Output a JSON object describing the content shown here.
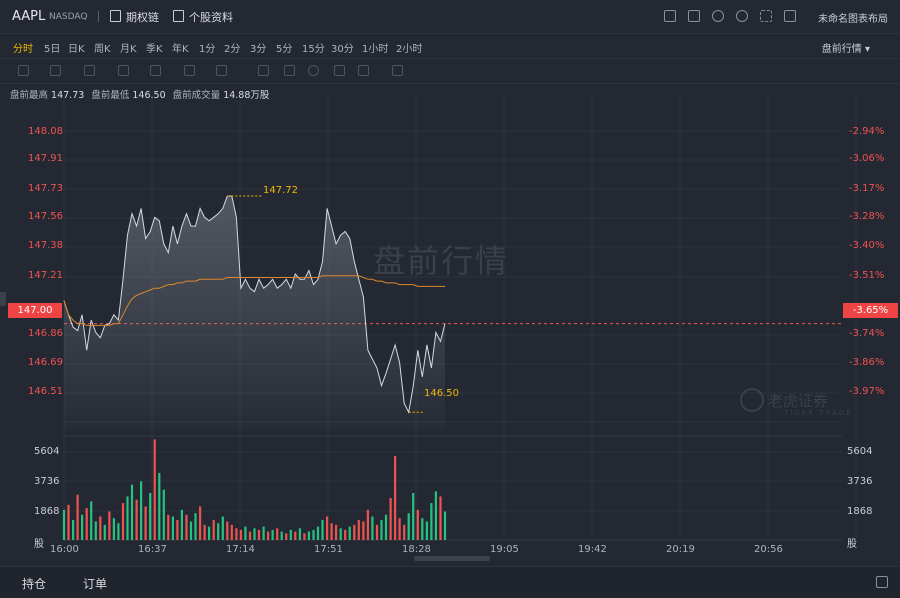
{
  "header": {
    "symbol": "AAPL",
    "exchange": "NASDAQ",
    "links": [
      {
        "label": "期权链",
        "icon": "chain-icon"
      },
      {
        "label": "个股资料",
        "icon": "document-icon"
      }
    ],
    "tool_icons": [
      "chart-settings-icon",
      "draw-icon",
      "refresh-icon",
      "gear-icon",
      "fullscreen-icon",
      "grid-icon"
    ],
    "layout_name": "未命名图表布局"
  },
  "timeframes": [
    "分时",
    "5日",
    "日K",
    "周K",
    "月K",
    "季K",
    "年K",
    "1分",
    "2分",
    "3分",
    "5分",
    "15分",
    "30分",
    "1小时",
    "2小时"
  ],
  "active_timeframe": 0,
  "session_selector": "盘前行情 ▾",
  "stats": [
    {
      "label": "盘前最高",
      "value": "147.73"
    },
    {
      "label": "盘前最低",
      "value": "146.50"
    },
    {
      "label": "盘前成交量",
      "value": "14.88万股"
    }
  ],
  "price_axis": [
    "148.08",
    "147.91",
    "147.73",
    "147.56",
    "147.38",
    "147.21",
    "147.00",
    "146.86",
    "146.69",
    "146.51"
  ],
  "pct_axis": [
    "-2.94%",
    "-3.06%",
    "-3.17%",
    "-3.28%",
    "-3.40%",
    "-3.51%",
    "-3.65%",
    "-3.74%",
    "-3.86%",
    "-3.97%"
  ],
  "current_price": "147.00",
  "current_pct": "-3.65%",
  "high_callout": "147.72",
  "low_callout": "146.50",
  "watermark": "盘前行情",
  "brand": {
    "cn": "老虎证券",
    "en": "TIGER TRADE"
  },
  "volume_axis": [
    "5604",
    "3736",
    "1868",
    "股"
  ],
  "x_axis": [
    "16:00",
    "16:37",
    "17:14",
    "17:51",
    "18:28",
    "19:05",
    "19:42",
    "20:19",
    "20:56"
  ],
  "bottom_tabs": [
    "持仓",
    "订单"
  ],
  "colors": {
    "up": "#26c281",
    "down": "#ef5350",
    "avg": "#d9882b",
    "price": "#d6dae0",
    "accent": "#f2b705"
  },
  "chart_data": {
    "type": "line",
    "x_range": [
      "16:00",
      "21:30"
    ],
    "price_series": [
      147.13,
      147.05,
      146.98,
      146.96,
      147.05,
      146.85,
      147.02,
      146.95,
      146.92,
      146.99,
      147.0,
      147.05,
      147.02,
      147.25,
      147.5,
      147.62,
      147.55,
      147.65,
      147.48,
      147.52,
      147.6,
      147.58,
      147.45,
      147.4,
      147.55,
      147.45,
      147.55,
      147.62,
      147.55,
      147.55,
      147.65,
      147.6,
      147.58,
      147.6,
      147.62,
      147.65,
      147.72,
      147.72,
      147.6,
      147.2,
      147.25,
      147.2,
      147.18,
      147.25,
      147.2,
      147.22,
      147.25,
      147.2,
      147.22,
      147.25,
      147.2,
      147.28,
      147.25,
      147.25,
      147.3,
      147.22,
      147.25,
      147.35,
      147.65,
      147.55,
      147.45,
      147.5,
      147.52,
      147.48,
      147.35,
      147.25,
      147.15,
      146.85,
      146.8,
      146.75,
      146.65,
      146.72,
      146.8,
      146.88,
      146.78,
      146.55,
      146.5,
      146.65,
      146.85,
      146.7,
      146.88,
      146.75,
      146.95,
      146.9,
      147.0
    ],
    "avg_series": [
      147.13,
      147.05,
      147.02,
      147.0,
      147.0,
      146.99,
      146.99,
      146.99,
      146.99,
      146.99,
      146.99,
      147.0,
      147.0,
      147.05,
      147.1,
      147.14,
      147.16,
      147.17,
      147.18,
      147.19,
      147.2,
      147.2,
      147.21,
      147.22,
      147.22,
      147.23,
      147.23,
      147.24,
      147.24,
      147.24,
      147.25,
      147.25,
      147.25,
      147.25,
      147.25,
      147.25,
      147.26,
      147.26,
      147.26,
      147.26,
      147.26,
      147.26,
      147.26,
      147.26,
      147.26,
      147.26,
      147.26,
      147.26,
      147.26,
      147.26,
      147.26,
      147.26,
      147.26,
      147.26,
      147.26,
      147.26,
      147.26,
      147.27,
      147.27,
      147.27,
      147.27,
      147.27,
      147.27,
      147.27,
      147.27,
      147.27,
      147.26,
      147.25,
      147.25,
      147.24,
      147.24,
      147.23,
      147.23,
      147.23,
      147.22,
      147.22,
      147.22,
      147.22,
      147.21,
      147.21,
      147.21,
      147.21,
      147.21,
      147.21,
      147.21
    ],
    "volume_values": [
      1800,
      2100,
      1200,
      2700,
      1500,
      1900,
      2300,
      1100,
      1400,
      900,
      1700,
      1300,
      1000,
      2200,
      2600,
      3300,
      2400,
      3500,
      2000,
      2800,
      6000,
      4000,
      3000,
      1500,
      1400,
      1200,
      1800,
      1500,
      1100,
      1600,
      2000,
      900,
      800,
      1200,
      1000,
      1400,
      1100,
      900,
      700,
      600,
      800,
      500,
      700,
      600,
      800,
      500,
      600,
      700,
      500,
      400,
      600,
      500,
      700,
      400,
      500,
      600,
      800,
      1200,
      1400,
      1000,
      900,
      700,
      600,
      800,
      900,
      1200,
      1100,
      1800,
      1400,
      900,
      1200,
      1500,
      2500,
      5000,
      1300,
      900,
      1600,
      2800,
      1800,
      1300,
      1100,
      2200,
      2900,
      2600,
      1700
    ],
    "volume_up": [
      true,
      false,
      true,
      false,
      true,
      false,
      true,
      true,
      false,
      true,
      false,
      true,
      true,
      false,
      true,
      true,
      false,
      true,
      false,
      true,
      false,
      true,
      true,
      false,
      true,
      false,
      true,
      false,
      true,
      true,
      false,
      false,
      true,
      false,
      true,
      true,
      false,
      false,
      false,
      false,
      true,
      false,
      true,
      false,
      true,
      false,
      true,
      false,
      true,
      false,
      true,
      false,
      true,
      false,
      true,
      true,
      true,
      true,
      false,
      false,
      false,
      true,
      false,
      true,
      false,
      false,
      false,
      false,
      true,
      false,
      true,
      true,
      false,
      false,
      false,
      false,
      true,
      true,
      false,
      true,
      true,
      true,
      true,
      false,
      true
    ],
    "ylim_price": [
      146.4,
      148.16
    ],
    "ylim_volume": [
      0,
      6200
    ],
    "prev_close_level": 147.0
  }
}
